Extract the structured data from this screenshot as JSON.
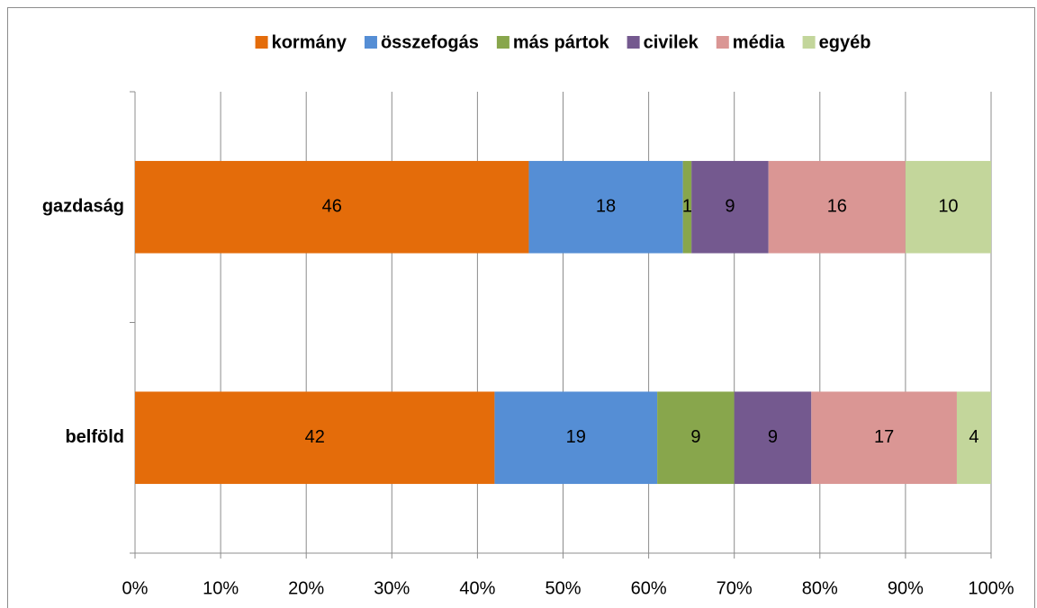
{
  "chart_data": {
    "type": "bar",
    "orientation": "horizontal",
    "stacked": true,
    "categories": [
      "gazdaság",
      "belföld"
    ],
    "series": [
      {
        "name": "kormány",
        "color": "#e46c0a",
        "values": [
          46,
          42
        ]
      },
      {
        "name": "összefogás",
        "color": "#558ed5",
        "values": [
          18,
          19
        ]
      },
      {
        "name": "más pártok",
        "color": "#88a64c",
        "values": [
          1,
          9
        ]
      },
      {
        "name": "civilek",
        "color": "#74598f",
        "values": [
          9,
          9
        ]
      },
      {
        "name": "média",
        "color": "#da9694",
        "values": [
          16,
          17
        ]
      },
      {
        "name": "egyéb",
        "color": "#c3d69b",
        "values": [
          10,
          4
        ]
      }
    ],
    "xlim": [
      0,
      100
    ],
    "xticks": [
      {
        "value": 0,
        "label": "0%"
      },
      {
        "value": 10,
        "label": "10%"
      },
      {
        "value": 20,
        "label": "20%"
      },
      {
        "value": 30,
        "label": "30%"
      },
      {
        "value": 40,
        "label": "40%"
      },
      {
        "value": 50,
        "label": "50%"
      },
      {
        "value": 60,
        "label": "60%"
      },
      {
        "value": 70,
        "label": "70%"
      },
      {
        "value": 80,
        "label": "80%"
      },
      {
        "value": 90,
        "label": "90%"
      },
      {
        "value": 100,
        "label": "100%"
      }
    ],
    "grid": true,
    "legend": "top"
  }
}
